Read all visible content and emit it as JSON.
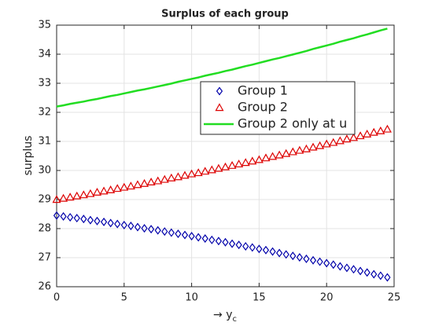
{
  "chart_data": {
    "type": "scatter-line",
    "title": "Surplus of each group",
    "xlabel": "→ y",
    "xlabel_sub": "c",
    "ylabel": "surplus",
    "xlim": [
      0,
      25
    ],
    "xticks": [
      0,
      5,
      10,
      15,
      20,
      25
    ],
    "ylim": [
      26,
      35
    ],
    "yticks": [
      26,
      27,
      28,
      29,
      30,
      31,
      32,
      33,
      34,
      35
    ],
    "grid": true,
    "legend": "upper center",
    "x": [
      0,
      0.5,
      1,
      1.5,
      2,
      2.5,
      3,
      3.5,
      4,
      4.5,
      5,
      5.5,
      6,
      6.5,
      7,
      7.5,
      8,
      8.5,
      9,
      9.5,
      10,
      10.5,
      11,
      11.5,
      12,
      12.5,
      13,
      13.5,
      14,
      14.5,
      15,
      15.5,
      16,
      16.5,
      17,
      17.5,
      18,
      18.5,
      19,
      19.5,
      20,
      20.5,
      21,
      21.5,
      22,
      22.5,
      23,
      23.5,
      24,
      24.5
    ],
    "series": [
      {
        "name": "Group 1",
        "color": "#0000aa",
        "marker": "diamond",
        "values": [
          28.45,
          28.42,
          28.39,
          28.36,
          28.33,
          28.29,
          28.26,
          28.23,
          28.19,
          28.16,
          28.12,
          28.09,
          28.05,
          28.01,
          27.98,
          27.94,
          27.9,
          27.86,
          27.82,
          27.78,
          27.74,
          27.7,
          27.66,
          27.61,
          27.57,
          27.53,
          27.48,
          27.44,
          27.39,
          27.35,
          27.3,
          27.26,
          27.21,
          27.16,
          27.11,
          27.06,
          27.01,
          26.96,
          26.91,
          26.86,
          26.81,
          26.76,
          26.7,
          26.65,
          26.6,
          26.54,
          26.49,
          26.43,
          26.38,
          26.32
        ]
      },
      {
        "name": "Group 2",
        "color": "#dd0000",
        "marker": "triangle",
        "values": [
          29.0,
          29.04,
          29.08,
          29.12,
          29.16,
          29.2,
          29.25,
          29.29,
          29.33,
          29.38,
          29.42,
          29.46,
          29.51,
          29.55,
          29.6,
          29.64,
          29.69,
          29.74,
          29.78,
          29.83,
          29.88,
          29.92,
          29.97,
          30.02,
          30.07,
          30.12,
          30.17,
          30.22,
          30.27,
          30.32,
          30.37,
          30.43,
          30.48,
          30.53,
          30.58,
          30.64,
          30.69,
          30.74,
          30.8,
          30.85,
          30.91,
          30.96,
          31.02,
          31.08,
          31.13,
          31.19,
          31.25,
          31.31,
          31.36,
          31.42
        ]
      },
      {
        "name": "Group 2 only at u",
        "color": "#22dd22",
        "marker": null,
        "values": [
          32.2,
          32.24,
          32.29,
          32.33,
          32.37,
          32.42,
          32.46,
          32.51,
          32.56,
          32.6,
          32.65,
          32.7,
          32.75,
          32.79,
          32.84,
          32.89,
          32.94,
          32.99,
          33.05,
          33.1,
          33.15,
          33.2,
          33.26,
          33.31,
          33.36,
          33.42,
          33.47,
          33.53,
          33.59,
          33.64,
          33.7,
          33.76,
          33.82,
          33.87,
          33.93,
          33.99,
          34.05,
          34.11,
          34.18,
          34.24,
          34.3,
          34.36,
          34.43,
          34.49,
          34.55,
          34.62,
          34.68,
          34.75,
          34.82,
          34.88
        ]
      }
    ]
  }
}
